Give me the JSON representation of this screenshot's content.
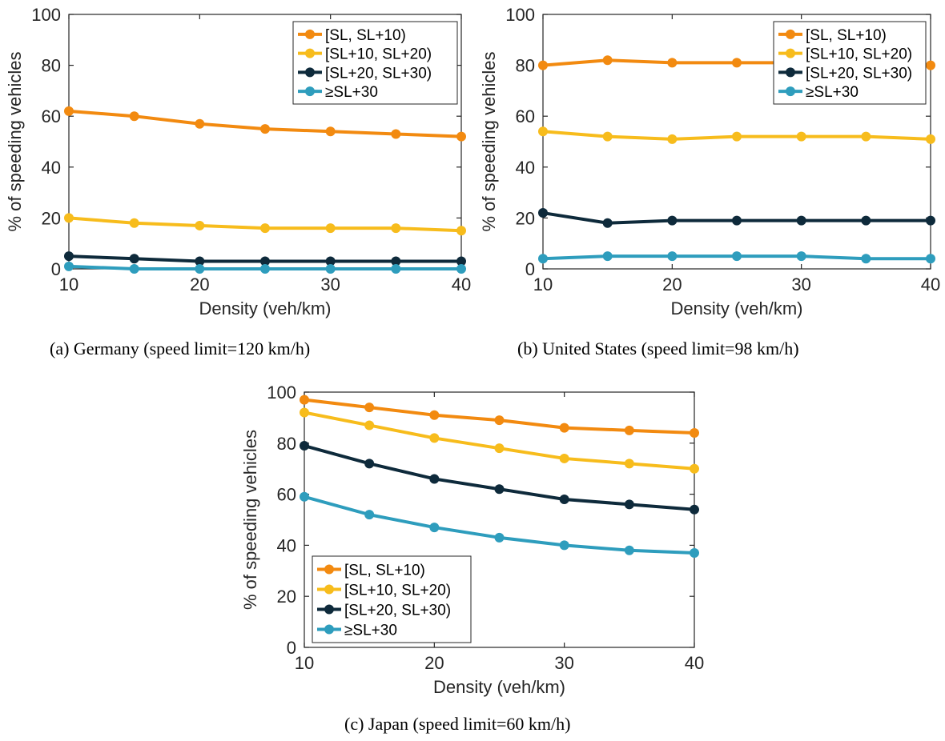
{
  "colors": {
    "orange": "#F28A10",
    "yellow": "#F7BC1C",
    "navy": "#0E2A3B",
    "teal": "#2E9DBD"
  },
  "chart_data": [
    {
      "type": "line",
      "caption": "(a)  Germany (speed limit=120 km/h)",
      "xlabel": "Density (veh/km)",
      "ylabel": "% of speeding vehicles",
      "xlim": [
        10,
        40
      ],
      "ylim": [
        0,
        100
      ],
      "xticks": [
        10,
        20,
        30,
        40
      ],
      "yticks": [
        0,
        20,
        40,
        60,
        80,
        100
      ],
      "legend_placement": "top-right",
      "grid": false,
      "x": [
        10,
        15,
        20,
        25,
        30,
        35,
        40
      ],
      "series": [
        {
          "name": "[SL, SL+10)",
          "color": "#F28A10",
          "values": [
            62,
            60,
            57,
            55,
            54,
            53,
            52
          ]
        },
        {
          "name": "[SL+10, SL+20)",
          "color": "#F7BC1C",
          "values": [
            20,
            18,
            17,
            16,
            16,
            16,
            15
          ]
        },
        {
          "name": "[SL+20, SL+30)",
          "color": "#0E2A3B",
          "values": [
            5,
            4,
            3,
            3,
            3,
            3,
            3
          ]
        },
        {
          "name": "≥SL+30",
          "color": "#2E9DBD",
          "values": [
            1,
            0,
            0,
            0,
            0,
            0,
            0
          ]
        }
      ]
    },
    {
      "type": "line",
      "caption": "(b)  United States (speed limit=98 km/h)",
      "xlabel": "Density (veh/km)",
      "ylabel": "% of speeding vehicles",
      "xlim": [
        10,
        40
      ],
      "ylim": [
        0,
        100
      ],
      "xticks": [
        10,
        20,
        30,
        40
      ],
      "yticks": [
        0,
        20,
        40,
        60,
        80,
        100
      ],
      "legend_placement": "top-right",
      "grid": false,
      "x": [
        10,
        15,
        20,
        25,
        30,
        35,
        40
      ],
      "series": [
        {
          "name": "[SL, SL+10)",
          "color": "#F28A10",
          "values": [
            80,
            82,
            81,
            81,
            81,
            81,
            80
          ]
        },
        {
          "name": "[SL+10, SL+20)",
          "color": "#F7BC1C",
          "values": [
            54,
            52,
            51,
            52,
            52,
            52,
            51
          ]
        },
        {
          "name": "[SL+20, SL+30)",
          "color": "#0E2A3B",
          "values": [
            22,
            18,
            19,
            19,
            19,
            19,
            19
          ]
        },
        {
          "name": "≥SL+30",
          "color": "#2E9DBD",
          "values": [
            4,
            5,
            5,
            5,
            5,
            4,
            4
          ]
        }
      ]
    },
    {
      "type": "line",
      "caption": "(c)  Japan (speed limit=60 km/h)",
      "xlabel": "Density (veh/km)",
      "ylabel": "% of speeding vehicles",
      "xlim": [
        10,
        40
      ],
      "ylim": [
        0,
        100
      ],
      "xticks": [
        10,
        20,
        30,
        40
      ],
      "yticks": [
        0,
        20,
        40,
        60,
        80,
        100
      ],
      "legend_placement": "bottom-left",
      "grid": false,
      "x": [
        10,
        15,
        20,
        25,
        30,
        35,
        40
      ],
      "series": [
        {
          "name": "[SL, SL+10)",
          "color": "#F28A10",
          "values": [
            97,
            94,
            91,
            89,
            86,
            85,
            84
          ]
        },
        {
          "name": "[SL+10, SL+20)",
          "color": "#F7BC1C",
          "values": [
            92,
            87,
            82,
            78,
            74,
            72,
            70
          ]
        },
        {
          "name": "[SL+20, SL+30)",
          "color": "#0E2A3B",
          "values": [
            79,
            72,
            66,
            62,
            58,
            56,
            54
          ]
        },
        {
          "name": "≥SL+30",
          "color": "#2E9DBD",
          "values": [
            59,
            52,
            47,
            43,
            40,
            38,
            37
          ]
        }
      ]
    }
  ]
}
